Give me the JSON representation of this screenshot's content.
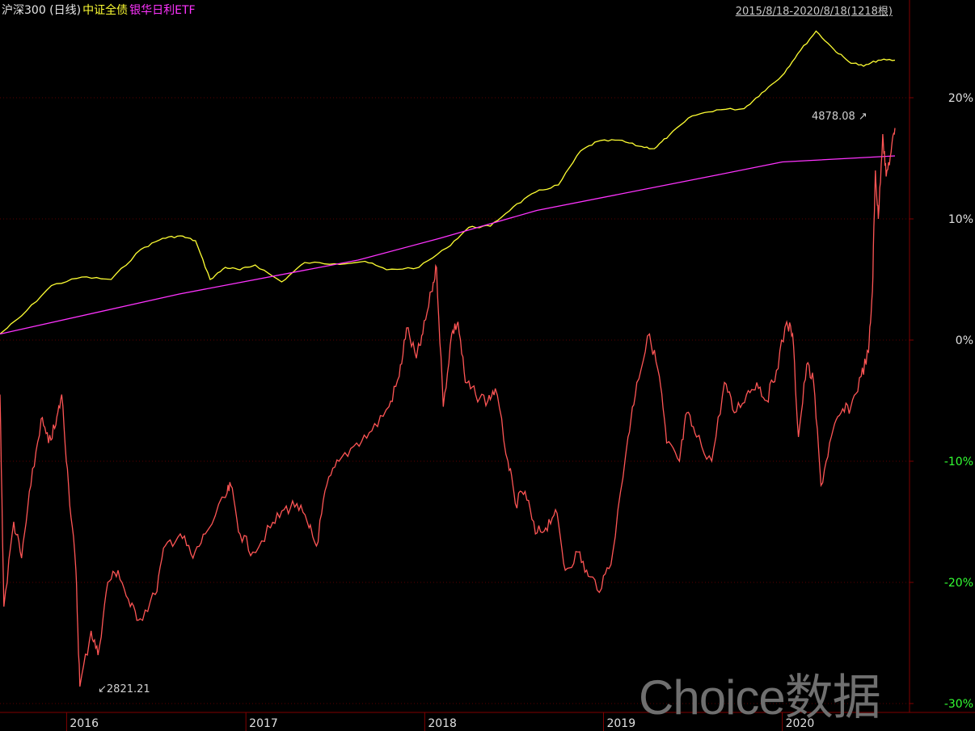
{
  "header": {
    "series_labels": [
      {
        "text": "沪深300 (日线)",
        "color": "#e6e6e6"
      },
      {
        "text": "中证全债",
        "color": "#ffff33"
      },
      {
        "text": "银华日利ETF",
        "color": "#ff33ff"
      }
    ],
    "date_range": "2015/8/18-2020/8/18(1218根)"
  },
  "watermark": "Choice数据",
  "annotations": {
    "high": "4878.08",
    "low": "2821.21"
  },
  "chart_data": {
    "type": "line",
    "x_ticks": [
      "2016",
      "2017",
      "2018",
      "2019",
      "2020"
    ],
    "y_ticks": [
      "20%",
      "10%",
      "0%",
      "-10%",
      "-20%",
      "-30%"
    ],
    "ylim": [
      -30,
      25
    ],
    "xlim": [
      "2015-08-18",
      "2020-08-18"
    ],
    "grid": true,
    "series": [
      {
        "name": "中证全债",
        "color": "#ffff33",
        "points": [
          [
            "2015-08-18",
            0.5
          ],
          [
            "2015-10-01",
            2.0
          ],
          [
            "2015-12-01",
            4.5
          ],
          [
            "2016-02-01",
            5.2
          ],
          [
            "2016-04-01",
            5.0
          ],
          [
            "2016-06-01",
            7.5
          ],
          [
            "2016-07-15",
            8.4
          ],
          [
            "2016-08-20",
            8.6
          ],
          [
            "2016-09-20",
            8.2
          ],
          [
            "2016-10-20",
            5.0
          ],
          [
            "2016-11-20",
            6.0
          ],
          [
            "2016-12-20",
            5.8
          ],
          [
            "2017-01-20",
            6.2
          ],
          [
            "2017-03-15",
            4.8
          ],
          [
            "2017-05-01",
            6.4
          ],
          [
            "2017-07-01",
            6.3
          ],
          [
            "2017-09-01",
            6.5
          ],
          [
            "2017-10-15",
            5.8
          ],
          [
            "2017-12-20",
            6.0
          ],
          [
            "2018-02-15",
            7.6
          ],
          [
            "2018-04-01",
            9.3
          ],
          [
            "2018-05-15",
            9.4
          ],
          [
            "2018-07-01",
            11.0
          ],
          [
            "2018-08-15",
            12.2
          ],
          [
            "2018-10-01",
            12.8
          ],
          [
            "2018-11-15",
            15.6
          ],
          [
            "2018-12-20",
            16.4
          ],
          [
            "2019-02-01",
            16.5
          ],
          [
            "2019-03-15",
            16.0
          ],
          [
            "2019-04-15",
            15.8
          ],
          [
            "2019-05-15",
            16.9
          ],
          [
            "2019-07-01",
            18.5
          ],
          [
            "2019-08-20",
            19.0
          ],
          [
            "2019-10-15",
            19.1
          ],
          [
            "2019-11-20",
            20.4
          ],
          [
            "2019-12-31",
            21.8
          ],
          [
            "2020-02-01",
            23.6
          ],
          [
            "2020-03-10",
            25.5
          ],
          [
            "2020-04-15",
            24.0
          ],
          [
            "2020-05-15",
            23.0
          ],
          [
            "2020-06-15",
            22.6
          ],
          [
            "2020-07-15",
            23.1
          ],
          [
            "2020-08-18",
            23.1
          ]
        ]
      },
      {
        "name": "银华日利ETF",
        "color": "#ff33ff",
        "points": [
          [
            "2015-08-18",
            0.5
          ],
          [
            "2016-08-18",
            3.8
          ],
          [
            "2017-08-18",
            6.6
          ],
          [
            "2018-02-01",
            8.4
          ],
          [
            "2018-08-18",
            10.7
          ],
          [
            "2019-08-18",
            13.6
          ],
          [
            "2020-01-01",
            14.7
          ],
          [
            "2020-08-18",
            15.2
          ]
        ]
      },
      {
        "name": "沪深300 (日线)",
        "color": "#ff5555",
        "points": [
          [
            "2015-08-18",
            -4.5
          ],
          [
            "2015-08-26",
            -22.0
          ],
          [
            "2015-09-15",
            -15.0
          ],
          [
            "2015-10-01",
            -18.0
          ],
          [
            "2015-10-20",
            -12.0
          ],
          [
            "2015-11-10",
            -6.5
          ],
          [
            "2015-11-25",
            -8.5
          ],
          [
            "2015-12-10",
            -7.0
          ],
          [
            "2015-12-22",
            -4.5
          ],
          [
            "2016-01-05",
            -12.0
          ],
          [
            "2016-01-20",
            -19.0
          ],
          [
            "2016-01-28",
            -28.6
          ],
          [
            "2016-02-20",
            -24.0
          ],
          [
            "2016-03-05",
            -26.0
          ],
          [
            "2016-03-25",
            -20.0
          ],
          [
            "2016-04-15",
            -19.0
          ],
          [
            "2016-05-10",
            -22.0
          ],
          [
            "2016-05-30",
            -23.0
          ],
          [
            "2016-06-30",
            -21.0
          ],
          [
            "2016-07-20",
            -17.0
          ],
          [
            "2016-08-20",
            -16.0
          ],
          [
            "2016-09-15",
            -18.0
          ],
          [
            "2016-10-10",
            -16.0
          ],
          [
            "2016-11-20",
            -13.0
          ],
          [
            "2016-12-01",
            -12.0
          ],
          [
            "2016-12-20",
            -16.0
          ],
          [
            "2017-01-15",
            -17.5
          ],
          [
            "2017-02-20",
            -15.5
          ],
          [
            "2017-03-20",
            -14.0
          ],
          [
            "2017-04-15",
            -13.5
          ],
          [
            "2017-05-10",
            -15.5
          ],
          [
            "2017-05-25",
            -17.0
          ],
          [
            "2017-06-15",
            -12.0
          ],
          [
            "2017-07-10",
            -10.0
          ],
          [
            "2017-08-15",
            -8.5
          ],
          [
            "2017-09-15",
            -7.5
          ],
          [
            "2017-10-20",
            -5.5
          ],
          [
            "2017-11-10",
            -3.0
          ],
          [
            "2017-11-25",
            1.0
          ],
          [
            "2017-12-15",
            -1.5
          ],
          [
            "2017-12-28",
            0.5
          ],
          [
            "2018-01-15",
            4.0
          ],
          [
            "2018-01-25",
            6.0
          ],
          [
            "2018-02-08",
            -5.5
          ],
          [
            "2018-02-25",
            0.5
          ],
          [
            "2018-03-10",
            1.5
          ],
          [
            "2018-03-25",
            -3.5
          ],
          [
            "2018-04-15",
            -4.5
          ],
          [
            "2018-05-10",
            -5.0
          ],
          [
            "2018-05-25",
            -4.0
          ],
          [
            "2018-06-20",
            -10.0
          ],
          [
            "2018-07-05",
            -13.5
          ],
          [
            "2018-07-25",
            -12.5
          ],
          [
            "2018-08-15",
            -16.0
          ],
          [
            "2018-09-05",
            -15.5
          ],
          [
            "2018-09-25",
            -14.0
          ],
          [
            "2018-10-15",
            -19.0
          ],
          [
            "2018-11-10",
            -17.5
          ],
          [
            "2018-12-01",
            -19.5
          ],
          [
            "2018-12-28",
            -20.5
          ],
          [
            "2019-01-20",
            -17.5
          ],
          [
            "2019-02-20",
            -8.0
          ],
          [
            "2019-03-10",
            -3.5
          ],
          [
            "2019-04-05",
            0.5
          ],
          [
            "2019-04-25",
            -3.0
          ],
          [
            "2019-05-10",
            -8.5
          ],
          [
            "2019-06-05",
            -10.0
          ],
          [
            "2019-06-20",
            -6.0
          ],
          [
            "2019-07-10",
            -8.0
          ],
          [
            "2019-08-10",
            -10.0
          ],
          [
            "2019-09-05",
            -3.5
          ],
          [
            "2019-09-25",
            -6.0
          ],
          [
            "2019-10-20",
            -4.5
          ],
          [
            "2019-11-10",
            -3.5
          ],
          [
            "2019-11-30",
            -5.0
          ],
          [
            "2019-12-20",
            -2.5
          ],
          [
            "2020-01-10",
            1.5
          ],
          [
            "2020-01-22",
            0.5
          ],
          [
            "2020-02-03",
            -8.0
          ],
          [
            "2020-02-20",
            -2.0
          ],
          [
            "2020-03-05",
            -3.5
          ],
          [
            "2020-03-20",
            -12.0
          ],
          [
            "2020-04-10",
            -8.0
          ],
          [
            "2020-04-30",
            -6.0
          ],
          [
            "2020-05-20",
            -5.5
          ],
          [
            "2020-06-10",
            -3.0
          ],
          [
            "2020-06-25",
            -1.0
          ],
          [
            "2020-07-03",
            4.0
          ],
          [
            "2020-07-09",
            14.0
          ],
          [
            "2020-07-15",
            10.0
          ],
          [
            "2020-07-24",
            17.0
          ],
          [
            "2020-07-31",
            13.5
          ],
          [
            "2020-08-10",
            15.5
          ],
          [
            "2020-08-18",
            17.5
          ]
        ]
      }
    ]
  },
  "style": {
    "positive_tick_color": "#e0e0e0",
    "zero_tick_color": "#e0e0e0",
    "negative_tick_color": "#33ff33",
    "grid_color": "#5a0000",
    "axis_color": "#800000"
  }
}
